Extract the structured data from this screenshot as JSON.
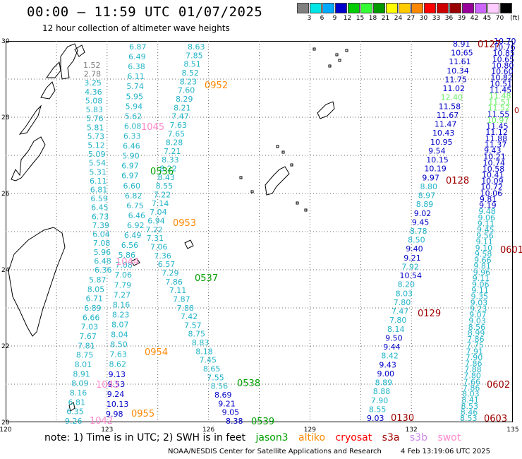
{
  "header": {
    "title": "00:00 – 11:59 UTC 01/07/2025",
    "subtitle": "12 hour collection of altimeter wave heights"
  },
  "legend": {
    "unit": "(ft)",
    "stops": [
      {
        "label": "3",
        "color": "#808080"
      },
      {
        "label": "6",
        "color": "#00e6e6"
      },
      {
        "label": "9",
        "color": "#00aaff"
      },
      {
        "label": "12",
        "color": "#0000cc"
      },
      {
        "label": "15",
        "color": "#00cc00"
      },
      {
        "label": "18",
        "color": "#33ff33"
      },
      {
        "label": "21",
        "color": "#009900"
      },
      {
        "label": "24",
        "color": "#ffff00"
      },
      {
        "label": "27",
        "color": "#ffcc00"
      },
      {
        "label": "30",
        "color": "#ff8800"
      },
      {
        "label": "33",
        "color": "#ff0000"
      },
      {
        "label": "36",
        "color": "#cc0000"
      },
      {
        "label": "39",
        "color": "#990000"
      },
      {
        "label": "42",
        "color": "#990099"
      },
      {
        "label": "45",
        "color": "#cc66ff"
      },
      {
        "label": "70",
        "color": "#ffccff"
      },
      {
        "label": "",
        "color": "#000000"
      }
    ]
  },
  "axes": {
    "lon_labels": [
      "120",
      "123",
      "126",
      "129",
      "132",
      "135"
    ],
    "lat_labels": [
      "30",
      "28",
      "26",
      "24",
      "22",
      "20"
    ]
  },
  "colors": {
    "cyan": "#22b4c8",
    "blue": "#0000c8",
    "green": "#00a000",
    "lightgreen": "#66ee66",
    "orange": "#ff8800",
    "pink": "#ff88cc",
    "darkred": "#a00000",
    "gray": "#808080"
  },
  "tracks": [
    {
      "time": "1045",
      "color": "pink"
    },
    {
      "time": "1044",
      "color": "pink"
    },
    {
      "time": "1043",
      "color": "pink"
    },
    {
      "time": "1042",
      "color": "pink"
    },
    {
      "time": "0952",
      "color": "orange"
    },
    {
      "time": "0953",
      "color": "orange"
    },
    {
      "time": "0954",
      "color": "orange"
    },
    {
      "time": "0955",
      "color": "orange"
    },
    {
      "time": "0536",
      "color": "green"
    },
    {
      "time": "0537",
      "color": "green"
    },
    {
      "time": "0538",
      "color": "green"
    },
    {
      "time": "0539",
      "color": "green"
    },
    {
      "time": "0127",
      "color": "darkred"
    },
    {
      "time": "0128",
      "color": "darkred"
    },
    {
      "time": "0129",
      "color": "darkred"
    },
    {
      "time": "0130",
      "color": "darkred"
    },
    {
      "time": "0601",
      "color": "darkred"
    },
    {
      "time": "0602",
      "color": "darkred"
    },
    {
      "time": "0603",
      "color": "darkred"
    }
  ],
  "sea_values": {
    "west_track_upper": [
      "1.52",
      "2.78",
      "3.25",
      "4.36",
      "5.08",
      "5.83",
      "5.76",
      "5.81",
      "5.73",
      "5.12",
      "5.09",
      "5.54",
      "5.31",
      "6.11",
      "6.81",
      "6.59",
      "6.45",
      "6.73",
      "7.39",
      "6.04",
      "7.08",
      "5.96",
      "6.48",
      "6.36"
    ],
    "west_track_lower": [
      "5.87",
      "8.05",
      "6.71",
      "6.89",
      "6.66",
      "7.03",
      "7.67",
      "7.81",
      "8.75",
      "8.01",
      "8.91",
      "8.09",
      "8.16",
      "6.81",
      "6.35",
      "9.26"
    ],
    "track_123_down": [
      "6.87",
      "6.49",
      "6.38",
      "6.11",
      "5.74",
      "5.95",
      "5.94",
      "5.62",
      "6.08",
      "6.33",
      "6.46",
      "5.90",
      "6.97",
      "6.97",
      "6.60",
      "6.82",
      "6.75",
      "6.46",
      "6.92",
      "6.49",
      "6.56",
      "5.86",
      "7.08",
      "7.06",
      "7.79",
      "7.27",
      "8.16",
      "8.23",
      "8.07",
      "8.04",
      "8.50",
      "7.63",
      "8.62",
      "9.13",
      "9.53",
      "9.24",
      "10.13",
      "9.98"
    ],
    "track_125_up": [
      "8.63",
      "7.85",
      "8.51",
      "8.52",
      "8.23",
      "7.60",
      "8.29",
      "8.21",
      "7.47",
      "7.63",
      "7.65",
      "8.28",
      "7.21",
      "8.33",
      "8.22",
      "8.43",
      "8.55",
      "7.22",
      "7.14",
      "7.04",
      "6.94",
      "7.22",
      "7.31",
      "7.06",
      "7.36",
      "6.57",
      "7.29",
      "7.86",
      "7.11",
      "7.87",
      "7.88",
      "7.42",
      "7.57",
      "8.75",
      "8.83",
      "8.18",
      "7.45",
      "8.65",
      "7.55",
      "8.56",
      "8.69",
      "9.21",
      "9.05",
      "8.38"
    ],
    "track_132_blue": [
      "8.91",
      "10.65",
      "11.61",
      "10.34",
      "11.75",
      "11.02",
      "12.40",
      "11.58",
      "11.67",
      "11.47",
      "10.43",
      "10.95",
      "9.54",
      "10.15",
      "10.19",
      "9.97",
      "8.80",
      "8.97",
      "8.89",
      "9.02",
      "9.45",
      "8.78",
      "8.50",
      "9.40",
      "9.21",
      "7.92",
      "10.54",
      "8.20",
      "8.03",
      "7.80",
      "7.47",
      "7.80",
      "8.14",
      "9.50",
      "9.44",
      "8.42",
      "9.43",
      "9.00",
      "8.89",
      "8.88",
      "7.90",
      "8.55",
      "9.03"
    ],
    "track_134_right": [
      "10.70",
      "10.76",
      "10.85",
      "10.65",
      "10.80",
      "10.60",
      "10.82",
      "10.51",
      "11.45",
      "11.48",
      "11.51",
      "11.52",
      "11.55",
      "10.97",
      "11.45",
      "11.12",
      "11.88",
      "11.37",
      "9.43",
      "10.21",
      "10.74",
      "10.58",
      "10.41",
      "10.09",
      "10.72",
      "10.06",
      "9.81",
      "9.19",
      "9.48",
      "9.06",
      "9.11",
      "9.45",
      "9.56",
      "9.11",
      "9.10",
      "9.58",
      "9.66",
      "9.81",
      "9.96",
      "9.11",
      "9.06",
      "9.11",
      "9.35",
      "9.03",
      "9.23",
      "9.07",
      "9.03",
      "8.56",
      "8.99",
      "7.86",
      "7.75",
      "7.91",
      "7.90",
      "7.86",
      "7.88",
      "7.80",
      "7.66",
      "7.86",
      "8.03",
      "8.41",
      "8.53",
      "8.46",
      "8.53"
    ],
    "edge_label": "0"
  },
  "footer": {
    "note": "note: 1) Time is in UTC; 2) SWH is in feet",
    "satellites": [
      {
        "name": "jason3",
        "color": "#00a000"
      },
      {
        "name": "altiko",
        "color": "#ff8800"
      },
      {
        "name": "cryosat",
        "color": "#ff0000"
      },
      {
        "name": "s3a",
        "color": "#a00000"
      },
      {
        "name": "s3b",
        "color": "#cc88ee"
      },
      {
        "name": "swot",
        "color": "#ff88cc"
      }
    ],
    "credit": "NOAA/NESDIS Center for Satellite Applications and Research",
    "timestamp": "4 Feb 13:19:06 UTC 2025"
  }
}
